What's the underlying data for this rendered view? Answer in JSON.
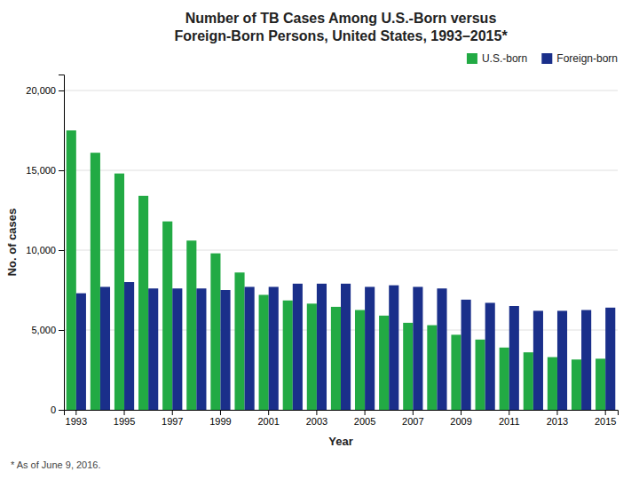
{
  "chart_data": {
    "type": "bar",
    "title": [
      "Number of TB Cases Among U.S.-Born versus",
      "Foreign-Born Persons, United States, 1993–2015*"
    ],
    "x_label": "Year",
    "y_label": "No. of cases",
    "annotations": [
      "* As of June 9, 2016."
    ],
    "categories": [
      "1993",
      null,
      "1995",
      null,
      "1997",
      null,
      "1999",
      null,
      "2001",
      null,
      "2003",
      null,
      "2005",
      null,
      "2007",
      null,
      "2009",
      null,
      "2011",
      null,
      "2013",
      null,
      "2015"
    ],
    "series": [
      {
        "name": "U.S.-born",
        "color": "#22aa44",
        "values": [
          17500,
          16100,
          14800,
          13400,
          11800,
          10600,
          9800,
          8600,
          7200,
          6850,
          6650,
          6450,
          6250,
          5900,
          5450,
          5300,
          4700,
          4400,
          3900,
          3600,
          3300,
          3150,
          3200
        ]
      },
      {
        "name": "Foreign-born",
        "color": "#1a2f8a",
        "values": [
          7300,
          7700,
          8000,
          7600,
          7600,
          7600,
          7500,
          7700,
          7700,
          7900,
          7900,
          7900,
          7700,
          7800,
          7700,
          7600,
          6900,
          6700,
          6500,
          6200,
          6200,
          6250,
          6400
        ]
      }
    ],
    "ylim": [
      0,
      21000
    ],
    "yticks": [
      0,
      {
        "value": 5000,
        "label": "5,000"
      },
      {
        "value": 10000,
        "label": "10,000"
      },
      {
        "value": 15000,
        "label": "15,000"
      },
      {
        "value": 20000,
        "label": "20,000"
      }
    ],
    "grid": true,
    "legend": "upper right"
  }
}
